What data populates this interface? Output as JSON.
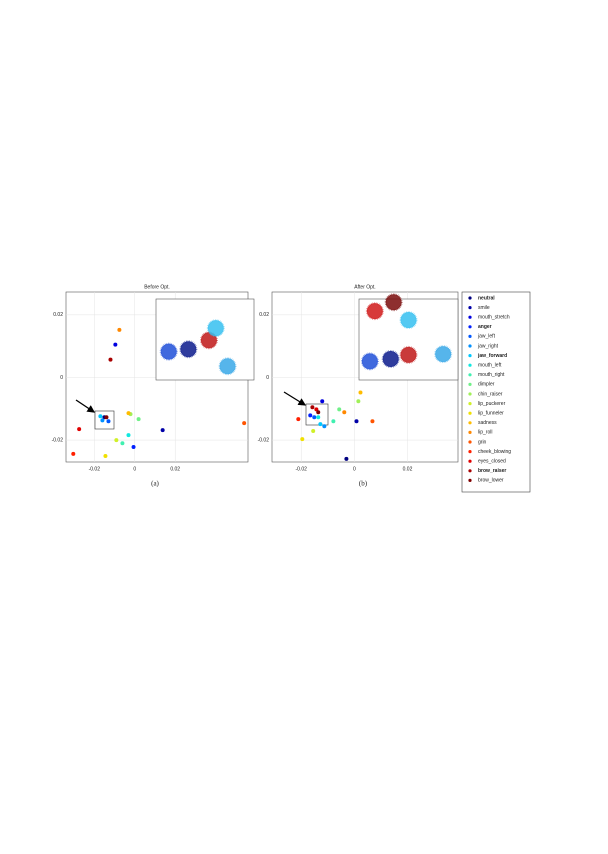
{
  "chart_data": [
    {
      "type": "scatter",
      "title": "Before Opt.",
      "caption": "(a)",
      "x": [
        -0.015,
        0.0138,
        -0.0096,
        -0.0006,
        -0.013,
        -0.016,
        -0.017,
        -0.0031,
        -0.0061,
        0.0019,
        -0.0021,
        -0.0091,
        -0.0145,
        -0.0031,
        -0.0076,
        0.0541,
        -0.0304,
        -0.0275,
        -0.012,
        -0.014
      ],
      "y": [
        -0.0127,
        -0.0168,
        0.0105,
        -0.0222,
        -0.014,
        -0.0137,
        -0.0124,
        -0.0184,
        -0.021,
        -0.0133,
        -0.0117,
        -0.02,
        -0.0251,
        -0.0114,
        0.0152,
        -0.0146,
        -0.0244,
        -0.0165,
        0.0057,
        -0.0127
      ],
      "xlim": [
        -0.034,
        0.056
      ],
      "ylim": [
        -0.027,
        0.0273
      ],
      "xticks": [
        -0.02,
        0,
        0.02
      ],
      "yticks": [
        -0.02,
        0,
        0.02
      ],
      "grid": true,
      "inset": {
        "x": [
          0.13,
          0.33,
          0.54,
          0.61,
          0.73
        ],
        "y": [
          0.65,
          0.62,
          0.51,
          0.36,
          0.83
        ],
        "colors": [
          "#1f4fd8",
          "#0a1a8c",
          "#c01818",
          "#35c0f0",
          "#38a8e8"
        ]
      }
    },
    {
      "type": "scatter",
      "title": "After Opt.",
      "caption": "(b)",
      "x": [
        -0.003,
        0.0008,
        -0.0121,
        -0.0166,
        -0.0151,
        -0.0113,
        -0.0128,
        -0.0136,
        -0.0079,
        -0.0057,
        0.0015,
        -0.0155,
        -0.0196,
        0.0023,
        -0.0038,
        0.0068,
        -0.0211,
        -0.0143,
        -0.0158,
        -0.0136
      ],
      "y": [
        -0.026,
        -0.014,
        -0.0076,
        -0.0121,
        -0.0127,
        -0.0156,
        -0.0149,
        -0.0127,
        -0.014,
        -0.0102,
        -0.0076,
        -0.0171,
        -0.0197,
        -0.0048,
        -0.0111,
        -0.014,
        -0.0133,
        -0.0102,
        -0.0095,
        -0.0111
      ],
      "xlim": [
        -0.031,
        0.039
      ],
      "ylim": [
        -0.027,
        0.0273
      ],
      "xticks": [
        -0.02,
        0,
        0.02
      ],
      "yticks": [
        -0.02,
        0,
        0.02
      ],
      "grid": true,
      "inset": {
        "x": [
          0.16,
          0.35,
          0.5,
          0.11,
          0.32,
          0.5,
          0.85
        ],
        "y": [
          0.15,
          0.04,
          0.26,
          0.77,
          0.74,
          0.69,
          0.68
        ],
        "colors": [
          "#d01818",
          "#7a0a0a",
          "#35c0f0",
          "#1f4fd8",
          "#0a1a8c",
          "#c01818",
          "#38a8e8"
        ]
      }
    }
  ],
  "legend": {
    "entries": [
      {
        "name": "neutral",
        "color": "#000080",
        "bold": true
      },
      {
        "name": "smile",
        "color": "#0000a8",
        "bold": false
      },
      {
        "name": "mouth_stretch",
        "color": "#0000e0",
        "bold": false
      },
      {
        "name": "anger",
        "color": "#0020ff",
        "bold": true
      },
      {
        "name": "jaw_left",
        "color": "#0058ff",
        "bold": false
      },
      {
        "name": "jaw_right",
        "color": "#0090ff",
        "bold": false
      },
      {
        "name": "jaw_forward",
        "color": "#00c8ff",
        "bold": true
      },
      {
        "name": "mouth_left",
        "color": "#10e8e0",
        "bold": false
      },
      {
        "name": "mouth_right",
        "color": "#40f0b0",
        "bold": false
      },
      {
        "name": "dimpler",
        "color": "#70f088",
        "bold": false
      },
      {
        "name": "chin_raiser",
        "color": "#a0f058",
        "bold": false
      },
      {
        "name": "lip_puckerer",
        "color": "#d0f028",
        "bold": false
      },
      {
        "name": "lip_funneler",
        "color": "#f0e000",
        "bold": false
      },
      {
        "name": "sadness",
        "color": "#ffbc00",
        "bold": false
      },
      {
        "name": "lip_roll",
        "color": "#ff8800",
        "bold": false
      },
      {
        "name": "grin",
        "color": "#ff5400",
        "bold": false
      },
      {
        "name": "cheek_blowing",
        "color": "#ff2000",
        "bold": false
      },
      {
        "name": "eyes_closed",
        "color": "#e00000",
        "bold": false
      },
      {
        "name": "brow_raiser",
        "color": "#a80000",
        "bold": true
      },
      {
        "name": "brow_lower",
        "color": "#800000",
        "bold": false
      }
    ]
  }
}
